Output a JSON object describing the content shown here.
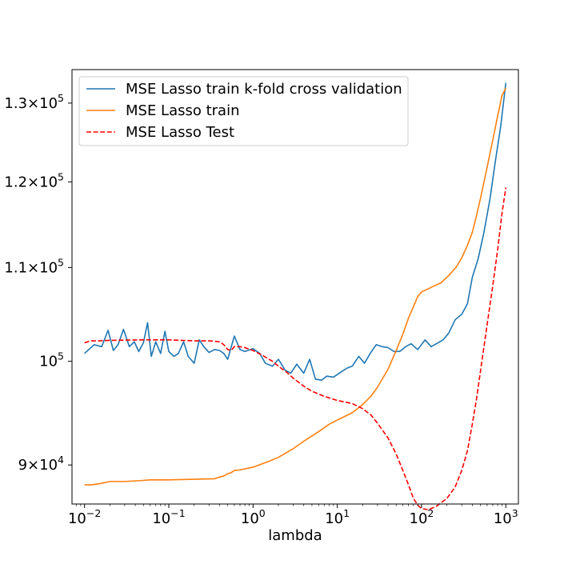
{
  "chart_data": {
    "type": "line",
    "xlabel": "lambda",
    "ylabel": "",
    "title": "",
    "xscale": "log",
    "yscale": "log",
    "xlim": [
      0.0071,
      1410
    ],
    "ylim": [
      86500,
      134500
    ],
    "grid": false,
    "legend_position": "upper-left",
    "x_ticks": [
      {
        "value": 0.01,
        "base": "10",
        "exp": "−2"
      },
      {
        "value": 0.1,
        "base": "10",
        "exp": "−1"
      },
      {
        "value": 1,
        "base": "10",
        "exp": "0"
      },
      {
        "value": 10,
        "base": "10",
        "exp": "1"
      },
      {
        "value": 100,
        "base": "10",
        "exp": "2"
      },
      {
        "value": 1000,
        "base": "10",
        "exp": "3"
      }
    ],
    "y_ticks": [
      {
        "value": 90000,
        "mant": "9",
        "base": "10",
        "exp": "4"
      },
      {
        "value": 100000,
        "mant": "",
        "base": "10",
        "exp": "5"
      },
      {
        "value": 110000,
        "mant": "1.1",
        "base": "10",
        "exp": "5"
      },
      {
        "value": 120000,
        "mant": "1.2",
        "base": "10",
        "exp": "5"
      },
      {
        "value": 130000,
        "mant": "1.3",
        "base": "10",
        "exp": "5"
      }
    ],
    "series": [
      {
        "name": "MSE Lasso train k-fold cross validation",
        "color": "#1f77b4",
        "dash": "solid",
        "x": [
          0.01,
          0.013,
          0.016,
          0.019,
          0.022,
          0.025,
          0.029,
          0.034,
          0.039,
          0.044,
          0.05,
          0.056,
          0.062,
          0.07,
          0.08,
          0.09,
          0.1,
          0.115,
          0.13,
          0.15,
          0.17,
          0.2,
          0.23,
          0.26,
          0.3,
          0.35,
          0.4,
          0.45,
          0.5,
          0.6,
          0.7,
          0.8,
          1.0,
          1.2,
          1.4,
          1.7,
          2.0,
          2.4,
          2.8,
          3.3,
          4.0,
          4.7,
          5.5,
          6.5,
          7.5,
          9.0,
          11,
          13,
          15,
          18,
          21,
          25,
          29,
          34,
          40,
          47,
          55,
          65,
          75,
          90,
          110,
          130,
          150,
          180,
          210,
          250,
          300,
          350,
          400,
          470,
          550,
          650,
          750,
          870,
          1000
        ],
        "y": [
          100800,
          101700,
          101500,
          103200,
          101100,
          101700,
          103300,
          101500,
          102000,
          101000,
          101900,
          104000,
          100500,
          102000,
          100800,
          103100,
          101000,
          100500,
          100800,
          102000,
          100500,
          99800,
          102200,
          101500,
          100900,
          101200,
          101100,
          100800,
          100200,
          102600,
          101200,
          101000,
          101300,
          100800,
          99800,
          99500,
          100200,
          99100,
          98800,
          99700,
          98800,
          100200,
          98200,
          98100,
          98500,
          98400,
          98900,
          99300,
          99500,
          100500,
          99800,
          100900,
          101700,
          101500,
          101400,
          101000,
          101000,
          101500,
          101800,
          101200,
          102200,
          101500,
          101800,
          102200,
          102900,
          104300,
          104900,
          106000,
          108900,
          111000,
          114000,
          118000,
          122500,
          127000,
          132700
        ]
      },
      {
        "name": "MSE Lasso train",
        "color": "#ff7f0e",
        "dash": "solid",
        "x": [
          0.01,
          0.012,
          0.015,
          0.02,
          0.03,
          0.05,
          0.06,
          0.1,
          0.2,
          0.35,
          0.4,
          0.45,
          0.5,
          0.55,
          0.6,
          0.7,
          1.0,
          1.5,
          2.0,
          3.0,
          4.0,
          6.0,
          8.0,
          10,
          15,
          20,
          25,
          30,
          40,
          50,
          60,
          70,
          80,
          90,
          100,
          130,
          170,
          210,
          260,
          300,
          350,
          400,
          450,
          500,
          600,
          700,
          800,
          900,
          1000
        ],
        "y": [
          88200,
          88200,
          88300,
          88500,
          88500,
          88600,
          88650,
          88650,
          88700,
          88750,
          88900,
          89000,
          89200,
          89300,
          89500,
          89550,
          89800,
          90300,
          90700,
          91500,
          92200,
          93100,
          93800,
          94200,
          94900,
          95700,
          96500,
          97400,
          99200,
          101100,
          102800,
          104500,
          105700,
          106800,
          107300,
          107800,
          108300,
          109100,
          110100,
          111100,
          112500,
          114000,
          116000,
          118000,
          121800,
          125200,
          128300,
          131000,
          132000
        ]
      },
      {
        "name": "MSE Lasso Test",
        "color": "#ff0000",
        "dash": "dashed",
        "x": [
          0.01,
          0.012,
          0.015,
          0.02,
          0.05,
          0.1,
          0.2,
          0.3,
          0.4,
          0.45,
          0.5,
          0.55,
          0.6,
          0.7,
          0.8,
          1.0,
          1.3,
          1.7,
          2.0,
          2.5,
          3.0,
          4.0,
          5.0,
          7.0,
          10,
          15,
          20,
          25,
          30,
          40,
          50,
          60,
          70,
          80,
          90,
          100,
          120,
          150,
          200,
          250,
          300,
          350,
          400,
          450,
          500,
          600,
          700,
          800,
          900,
          1000
        ],
        "y": [
          101900,
          102100,
          102100,
          102150,
          102200,
          102200,
          102100,
          102100,
          102000,
          101700,
          101200,
          101100,
          101500,
          101500,
          101400,
          101100,
          100600,
          100000,
          99500,
          98900,
          98300,
          97500,
          97000,
          96500,
          96100,
          95800,
          95300,
          94700,
          93900,
          92500,
          91000,
          89500,
          88200,
          87000,
          86400,
          86100,
          86000,
          86300,
          87000,
          88000,
          89500,
          91300,
          93800,
          96300,
          99000,
          103800,
          108000,
          112000,
          116200,
          119300
        ]
      }
    ]
  }
}
